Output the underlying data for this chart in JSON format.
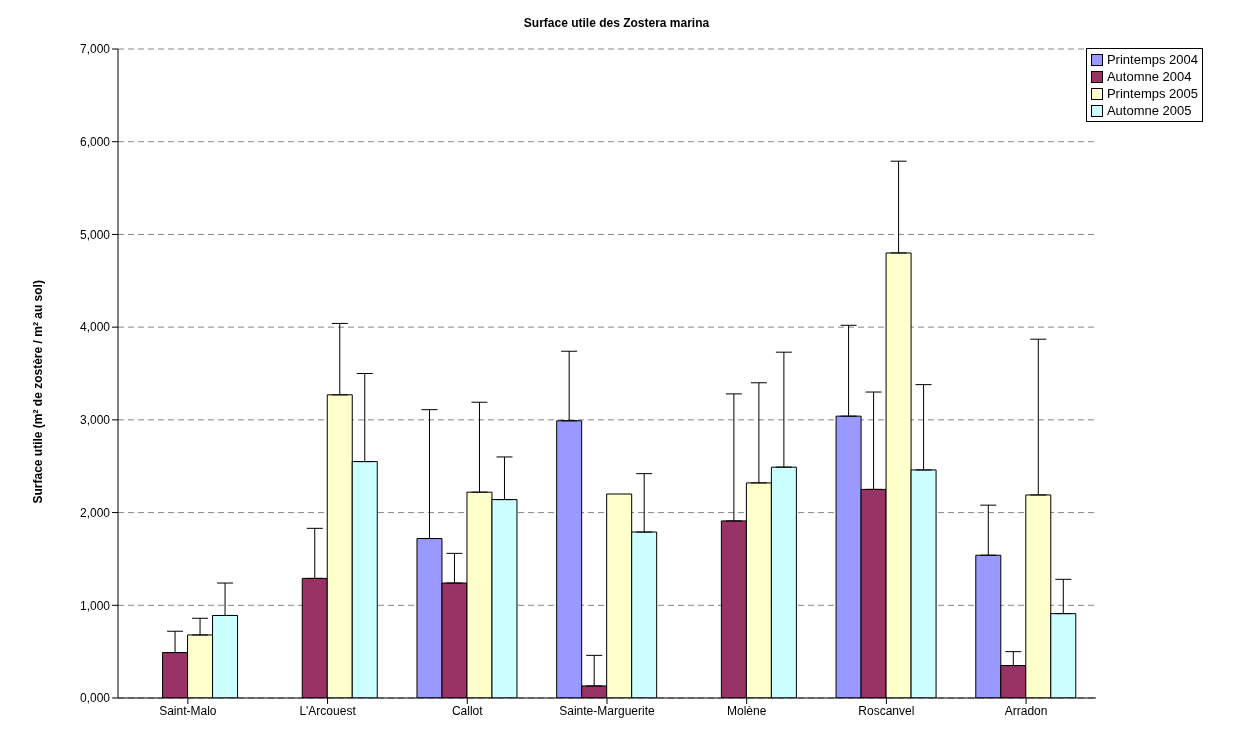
{
  "chart_data": {
    "type": "bar",
    "title": "Surface utile des Zostera marina",
    "ylabel": "Surface utile (m² de zostère / m² au sol)",
    "categories": [
      "Saint-Malo",
      "L'Arcouest",
      "Callot",
      "Sainte-Marguerite",
      "Molène",
      "Roscanvel",
      "Arradon"
    ],
    "series": [
      {
        "name": "Printemps 2004",
        "color": "#9999ff",
        "values": [
          null,
          null,
          1720,
          2990,
          null,
          3040,
          1540
        ],
        "errors": [
          null,
          null,
          [
            1720,
            3110
          ],
          [
            2990,
            3740
          ],
          null,
          [
            3040,
            4020
          ],
          [
            1540,
            2080
          ]
        ]
      },
      {
        "name": "Automne 2004",
        "color": "#993366",
        "values": [
          490,
          1290,
          1240,
          130,
          1910,
          2250,
          350
        ],
        "errors": [
          [
            490,
            720
          ],
          [
            1290,
            1830
          ],
          [
            1240,
            1560
          ],
          [
            130,
            460
          ],
          [
            1910,
            3280
          ],
          [
            2250,
            3300
          ],
          [
            350,
            500
          ]
        ]
      },
      {
        "name": "Printemps 2005",
        "color": "#ffffcc",
        "values": [
          680,
          3270,
          2220,
          2200,
          2320,
          4800,
          2190
        ],
        "errors": [
          [
            680,
            860
          ],
          [
            3270,
            4040
          ],
          [
            2220,
            3190
          ],
          null,
          [
            2320,
            3400
          ],
          [
            4800,
            5790
          ],
          [
            2190,
            3870
          ]
        ]
      },
      {
        "name": "Automne 2005",
        "color": "#ccffff",
        "values": [
          890,
          2550,
          2140,
          1790,
          2490,
          2460,
          910
        ],
        "errors": [
          [
            890,
            1240
          ],
          [
            2550,
            3500
          ],
          [
            2140,
            2600
          ],
          [
            1790,
            2420
          ],
          [
            2490,
            3730
          ],
          [
            2460,
            3380
          ],
          [
            910,
            1280
          ]
        ]
      }
    ],
    "ylim": [
      0,
      7000
    ],
    "yticks": [
      {
        "value": 0,
        "label": "0,000"
      },
      {
        "value": 1000,
        "label": "1,000"
      },
      {
        "value": 2000,
        "label": "2,000"
      },
      {
        "value": 3000,
        "label": "3,000"
      },
      {
        "value": 4000,
        "label": "4,000"
      },
      {
        "value": 5000,
        "label": "5,000"
      },
      {
        "value": 6000,
        "label": "6,000"
      },
      {
        "value": 7000,
        "label": "7,000"
      }
    ],
    "grid": "y",
    "legend": "top right"
  }
}
